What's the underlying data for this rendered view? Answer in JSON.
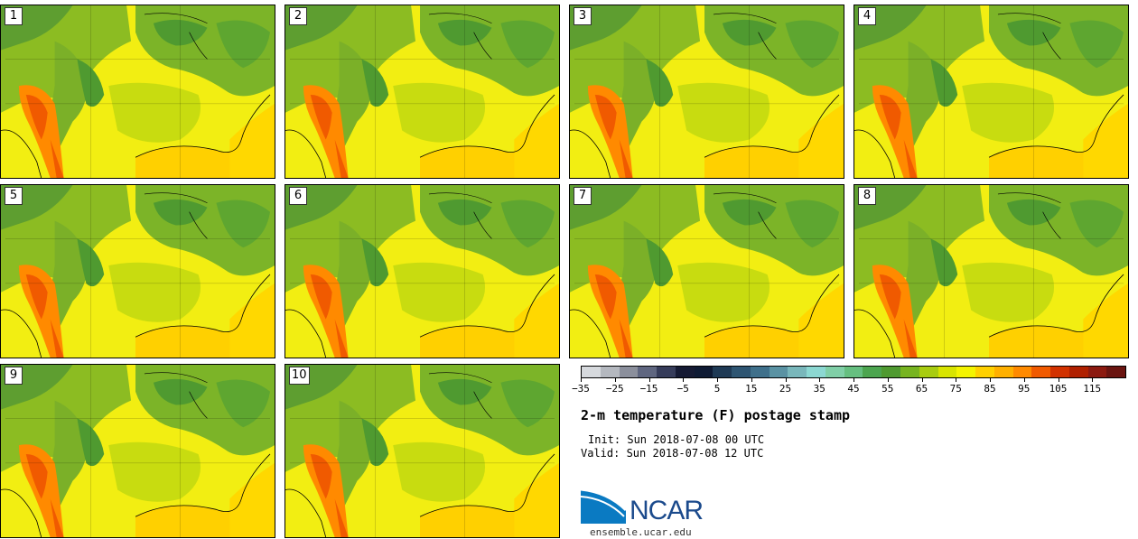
{
  "panels": [
    {
      "label": "1"
    },
    {
      "label": "2"
    },
    {
      "label": "3"
    },
    {
      "label": "4"
    },
    {
      "label": "5"
    },
    {
      "label": "6"
    },
    {
      "label": "7"
    },
    {
      "label": "8"
    },
    {
      "label": "9"
    },
    {
      "label": "10"
    }
  ],
  "colorbar": {
    "colors": [
      "#d6d9dd",
      "#b4b8bf",
      "#8b8f9c",
      "#5f6680",
      "#363c5a",
      "#151a33",
      "#0e1a33",
      "#1f3a55",
      "#2e5572",
      "#3f708b",
      "#5a92a3",
      "#79b7bb",
      "#8cd8d2",
      "#80cfa7",
      "#66bf80",
      "#4ca54f",
      "#4f9a30",
      "#77b420",
      "#a8cc10",
      "#d8e400",
      "#f4f400",
      "#ffd000",
      "#ffb000",
      "#ff8a00",
      "#f05a00",
      "#d23200",
      "#b02000",
      "#8c1a10",
      "#6a1410"
    ],
    "tick_labels": [
      "−35",
      "−25",
      "−15",
      "−5",
      "5",
      "15",
      "25",
      "35",
      "45",
      "55",
      "65",
      "75",
      "85",
      "95",
      "105",
      "115"
    ],
    "tick_values": [
      -35,
      -25,
      -15,
      -5,
      5,
      15,
      25,
      35,
      45,
      55,
      65,
      75,
      85,
      95,
      105,
      115
    ],
    "min": -35,
    "max": 125
  },
  "title": "2-m temperature (F) postage stamp",
  "init_text": "Init: Sun 2018-07-08 00 UTC",
  "valid_text": "Valid: Sun 2018-07-08 12 UTC",
  "logo_text": "NCAR",
  "site_text": "ensemble.ucar.edu"
}
